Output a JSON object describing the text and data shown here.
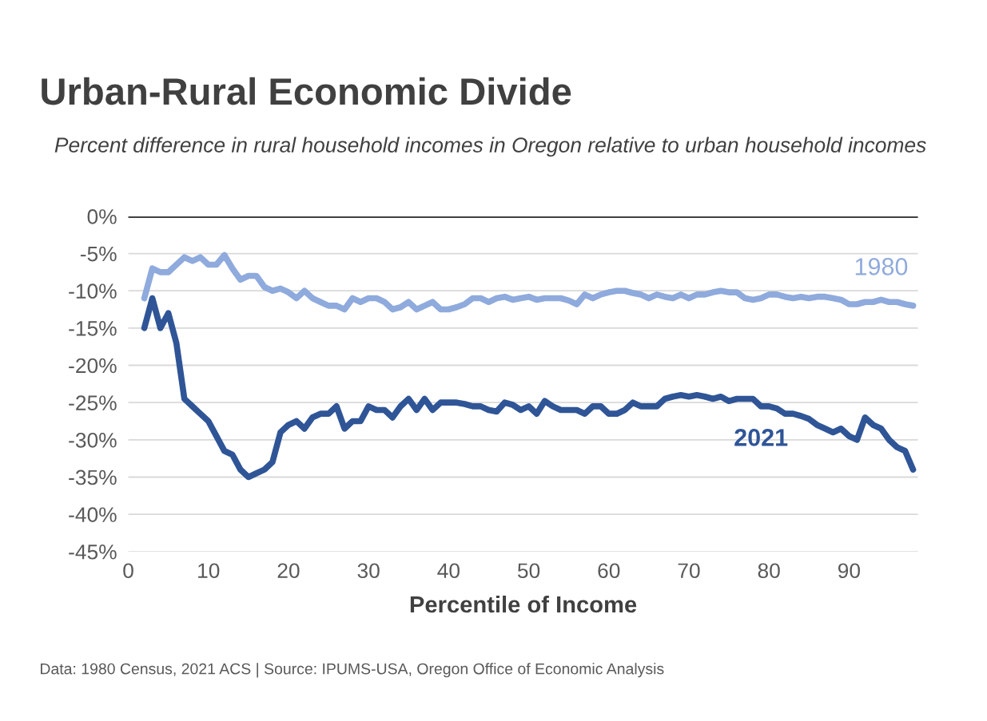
{
  "chart_data": {
    "type": "line",
    "title": "Urban-Rural Economic Divide",
    "subtitle": "Percent difference in rural household incomes in Oregon relative to urban household incomes",
    "xlabel": "Percentile of Income",
    "annotations": [
      "Data: 1980 Census, 2021 ACS | Source: IPUMS-USA, Oregon Office of Economic Analysis"
    ],
    "x": [
      2,
      3,
      4,
      5,
      6,
      7,
      8,
      9,
      10,
      11,
      12,
      13,
      14,
      15,
      16,
      17,
      18,
      19,
      20,
      21,
      22,
      23,
      24,
      25,
      26,
      27,
      28,
      29,
      30,
      31,
      32,
      33,
      34,
      35,
      36,
      37,
      38,
      39,
      40,
      41,
      42,
      43,
      44,
      45,
      46,
      47,
      48,
      49,
      50,
      51,
      52,
      53,
      54,
      55,
      56,
      57,
      58,
      59,
      60,
      61,
      62,
      63,
      64,
      65,
      66,
      67,
      68,
      69,
      70,
      71,
      72,
      73,
      74,
      75,
      76,
      77,
      78,
      79,
      80,
      81,
      82,
      83,
      84,
      85,
      86,
      87,
      88,
      89,
      90,
      91,
      92,
      93,
      94,
      95,
      96,
      97,
      98
    ],
    "series": [
      {
        "name": "1980",
        "color": "#8faadc",
        "values": [
          -11,
          -7,
          -7.5,
          -7.5,
          -6.5,
          -5.5,
          -6,
          -5.5,
          -6.5,
          -6.5,
          -5.2,
          -7,
          -8.5,
          -8,
          -8,
          -9.5,
          -10,
          -9.7,
          -10.2,
          -11,
          -10,
          -11,
          -11.5,
          -12,
          -12,
          -12.5,
          -11,
          -11.5,
          -11,
          -11,
          -11.5,
          -12.5,
          -12.2,
          -11.5,
          -12.5,
          -12,
          -11.5,
          -12.5,
          -12.5,
          -12.2,
          -11.8,
          -11,
          -11,
          -11.5,
          -11,
          -10.8,
          -11.2,
          -11,
          -10.8,
          -11.2,
          -11,
          -11,
          -11,
          -11.3,
          -11.8,
          -10.5,
          -11,
          -10.5,
          -10.2,
          -10,
          -10,
          -10.3,
          -10.5,
          -11,
          -10.5,
          -10.8,
          -11,
          -10.5,
          -11,
          -10.5,
          -10.5,
          -10.2,
          -10,
          -10.2,
          -10.2,
          -11,
          -11.2,
          -11,
          -10.5,
          -10.5,
          -10.8,
          -11,
          -10.8,
          -11,
          -10.8,
          -10.8,
          -11,
          -11.2,
          -11.8,
          -11.8,
          -11.5,
          -11.5,
          -11.2,
          -11.5,
          -11.5,
          -11.8,
          -12
        ]
      },
      {
        "name": "2021",
        "color": "#2f5597",
        "values": [
          -15,
          -11,
          -15,
          -13,
          -17,
          -24.5,
          -25.5,
          -26.5,
          -27.5,
          -29.5,
          -31.5,
          -32,
          -34,
          -35,
          -34.5,
          -34,
          -33,
          -29,
          -28,
          -27.5,
          -28.5,
          -27,
          -26.5,
          -26.5,
          -25.5,
          -28.5,
          -27.5,
          -27.5,
          -25.5,
          -26,
          -26,
          -27,
          -25.5,
          -24.5,
          -26,
          -24.5,
          -26,
          -25,
          -25,
          -25,
          -25.2,
          -25.5,
          -25.5,
          -26,
          -26.2,
          -25,
          -25.3,
          -26,
          -25.5,
          -26.5,
          -24.8,
          -25.5,
          -26,
          -26,
          -26,
          -26.5,
          -25.5,
          -25.5,
          -26.5,
          -26.5,
          -26,
          -25,
          -25.5,
          -25.5,
          -25.5,
          -24.5,
          -24.2,
          -24,
          -24.2,
          -24,
          -24.2,
          -24.5,
          -24.2,
          -24.8,
          -24.5,
          -24.5,
          -24.5,
          -25.5,
          -25.5,
          -25.8,
          -26.5,
          -26.5,
          -26.8,
          -27.2,
          -28,
          -28.5,
          -29,
          -28.5,
          -29.5,
          -30,
          -27,
          -28,
          -28.5,
          -30,
          -31,
          -31.5,
          -34
        ]
      }
    ],
    "xlim": [
      0,
      98.6
    ],
    "xticks": [
      0,
      10,
      20,
      30,
      40,
      50,
      60,
      70,
      80,
      90
    ],
    "ylim": [
      -45,
      0
    ],
    "yticks": [
      {
        "value": 0,
        "label": "0%"
      },
      {
        "value": -5,
        "label": "-5%"
      },
      {
        "value": -10,
        "label": "-10%"
      },
      {
        "value": -15,
        "label": "-15%"
      },
      {
        "value": -20,
        "label": "-20%"
      },
      {
        "value": -25,
        "label": "-25%"
      },
      {
        "value": -30,
        "label": "-30%"
      },
      {
        "value": -35,
        "label": "-35%"
      },
      {
        "value": -40,
        "label": "-40%"
      },
      {
        "value": -45,
        "label": "-45%"
      }
    ],
    "ref_lines": [
      {
        "axis": "y",
        "value": 0,
        "color": "#404040"
      }
    ],
    "grid": "y",
    "legend": false,
    "marker": "none",
    "line_style": "solid"
  }
}
